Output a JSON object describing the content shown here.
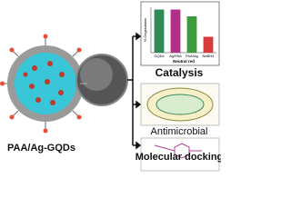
{
  "label": "PAA/Ag-GQDs",
  "panels": [
    "Catalysis",
    "Antimicrobial",
    "Molecular docking"
  ],
  "chart_data": {
    "type": "bar",
    "ylabel": "% Degradation",
    "xlabel": "Neutral red",
    "categories": [
      "GQDs",
      "Ag/PAA",
      "PAA/Ag",
      "NaBH4"
    ],
    "values": [
      95,
      95,
      80,
      35
    ],
    "colors": [
      "#2e8b57",
      "#b0308a",
      "#3c9b3c",
      "#d63a3a"
    ],
    "ylim": [
      0,
      100
    ]
  }
}
